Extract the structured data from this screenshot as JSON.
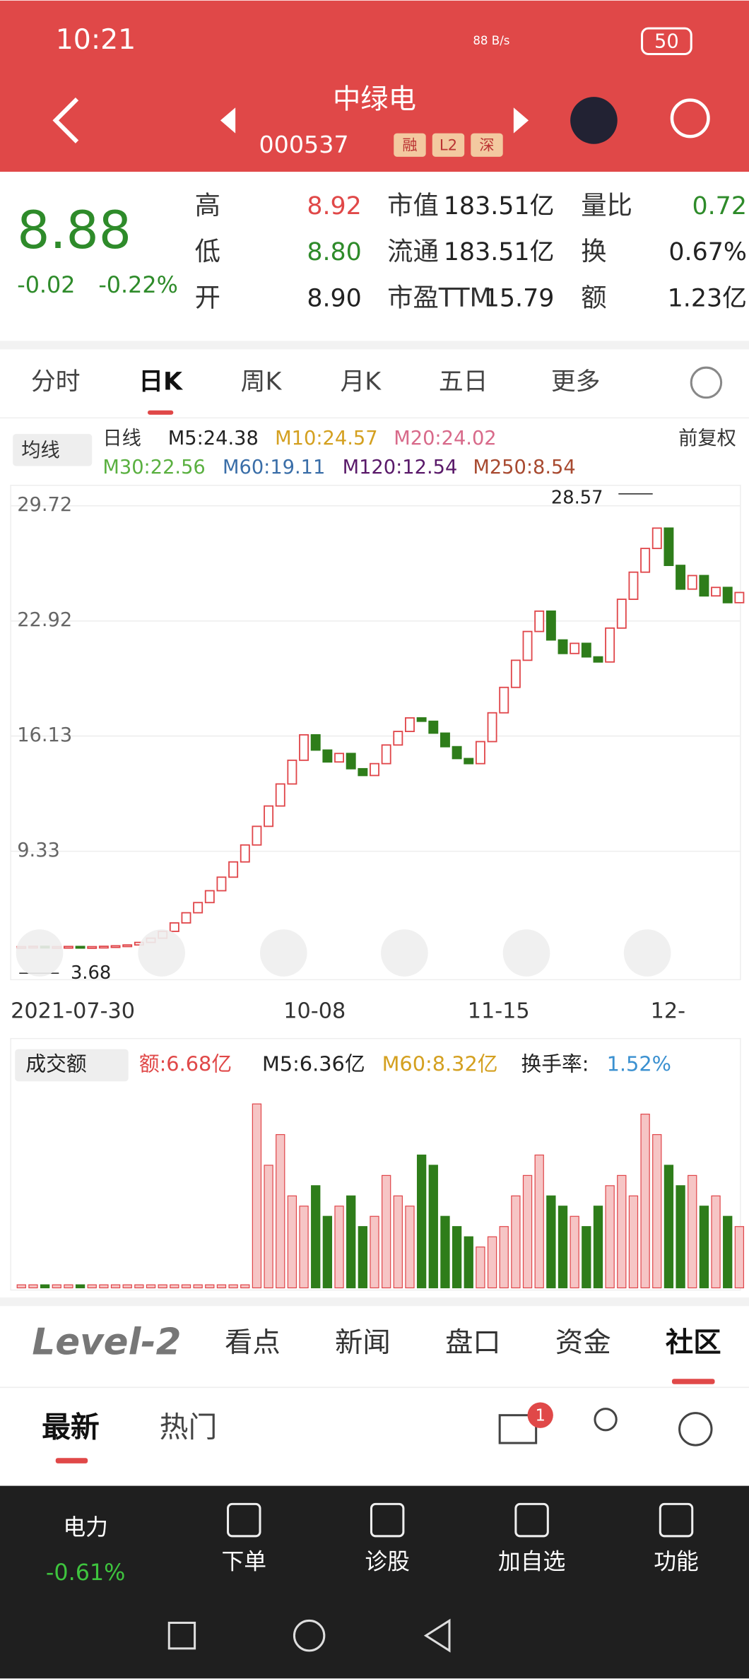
{
  "status": {
    "time": "10:21",
    "speed": "88 B/s",
    "battery": "50"
  },
  "header": {
    "name": "中绿电",
    "code": "000537",
    "tags": [
      "融",
      "L2",
      "深"
    ]
  },
  "quote": {
    "price": "8.88",
    "change": "-0.02",
    "pct": "-0.22%",
    "cells": [
      [
        "高",
        "8.92"
      ],
      [
        "低",
        "8.80"
      ],
      [
        "开",
        "8.90"
      ],
      [
        "市值",
        "183.51亿"
      ],
      [
        "流通",
        "183.51亿"
      ],
      [
        "市盈TTM",
        "15.79"
      ],
      [
        "量比",
        "0.72"
      ],
      [
        "换",
        "0.67%"
      ],
      [
        "额",
        "1.23亿"
      ]
    ]
  },
  "tabs": [
    "分时",
    "日K",
    "周K",
    "月K",
    "五日",
    "更多"
  ],
  "ma_legend": {
    "toggle": "均线",
    "period": "日线",
    "items": [
      "M5:24.38",
      "M10:24.57",
      "M20:24.02",
      "M30:22.56",
      "M60:19.11",
      "M120:12.54",
      "M250:8.54"
    ],
    "adjust": "前复权"
  },
  "chart_data": {
    "type": "candlestick",
    "ylim": [
      1.75,
      30.8
    ],
    "yticks": [
      29.72,
      22.92,
      16.13,
      9.33
    ],
    "max_label": "28.57",
    "min_label": "3.68",
    "dates": [
      "2021-07-30",
      "10-08",
      "11-15",
      "12-"
    ],
    "open": [
      3.69,
      3.7,
      3.72,
      3.68,
      3.7,
      3.71,
      3.69,
      3.7,
      3.72,
      3.75,
      3.8,
      3.95,
      4.2,
      4.6,
      5.1,
      5.7,
      6.3,
      7.0,
      7.8,
      8.7,
      9.7,
      10.8,
      12.0,
      13.3,
      14.7,
      16.2,
      15.3,
      14.6,
      15.1,
      14.2,
      13.8,
      14.5,
      15.6,
      16.4,
      17.2,
      17.0,
      16.3,
      15.5,
      14.8,
      14.5,
      15.8,
      17.5,
      19.0,
      20.6,
      22.3,
      23.5,
      21.8,
      21.0,
      21.6,
      20.8,
      20.5,
      22.5,
      24.2,
      25.8,
      27.2,
      28.4,
      26.2,
      24.8,
      25.6,
      24.4,
      24.9,
      24.0
    ],
    "close": [
      3.7,
      3.72,
      3.68,
      3.7,
      3.71,
      3.69,
      3.7,
      3.72,
      3.75,
      3.8,
      3.95,
      4.2,
      4.6,
      5.1,
      5.7,
      6.3,
      7.0,
      7.8,
      8.7,
      9.7,
      10.8,
      12.0,
      13.3,
      14.7,
      16.2,
      15.3,
      14.6,
      15.1,
      14.2,
      13.8,
      14.5,
      15.6,
      16.4,
      17.2,
      17.0,
      16.3,
      15.5,
      14.8,
      14.5,
      15.8,
      17.5,
      19.0,
      20.6,
      22.3,
      23.5,
      21.8,
      21.0,
      21.6,
      20.8,
      20.5,
      22.5,
      24.2,
      25.8,
      27.2,
      28.4,
      26.2,
      24.8,
      25.6,
      24.4,
      24.9,
      24.0,
      24.6
    ],
    "up_color": "#e0464a",
    "down_color": "#2e7d1a"
  },
  "volume_data": {
    "type": "bar",
    "ylim": [
      0,
      20
    ],
    "legend": [
      "成交额",
      "额:6.68亿",
      "M5:6.36亿",
      "M60:8.32亿",
      "换手率:",
      "1.52%"
    ],
    "values": [
      0.3,
      0.3,
      0.3,
      0.3,
      0.3,
      0.3,
      0.3,
      0.3,
      0.3,
      0.3,
      0.3,
      0.3,
      0.3,
      0.3,
      0.3,
      0.3,
      0.3,
      0.3,
      0.3,
      0.3,
      18,
      12,
      15,
      9,
      8,
      10,
      7,
      8,
      9,
      6,
      7,
      11,
      9,
      8,
      13,
      12,
      7,
      6,
      5,
      4,
      5,
      6,
      9,
      11,
      13,
      9,
      8,
      7,
      6,
      8,
      10,
      11,
      9,
      17,
      15,
      12,
      10,
      11,
      8,
      9,
      7,
      6
    ]
  },
  "section_tabs": [
    "Level-2",
    "看点",
    "新闻",
    "盘口",
    "资金",
    "社区"
  ],
  "feed_tabs": [
    "最新",
    "热门"
  ],
  "badge": "1",
  "bottom": {
    "sector": "电力",
    "sector_pct": "-0.61%",
    "items": [
      "下单",
      "诊股",
      "加自选",
      "功能"
    ]
  }
}
